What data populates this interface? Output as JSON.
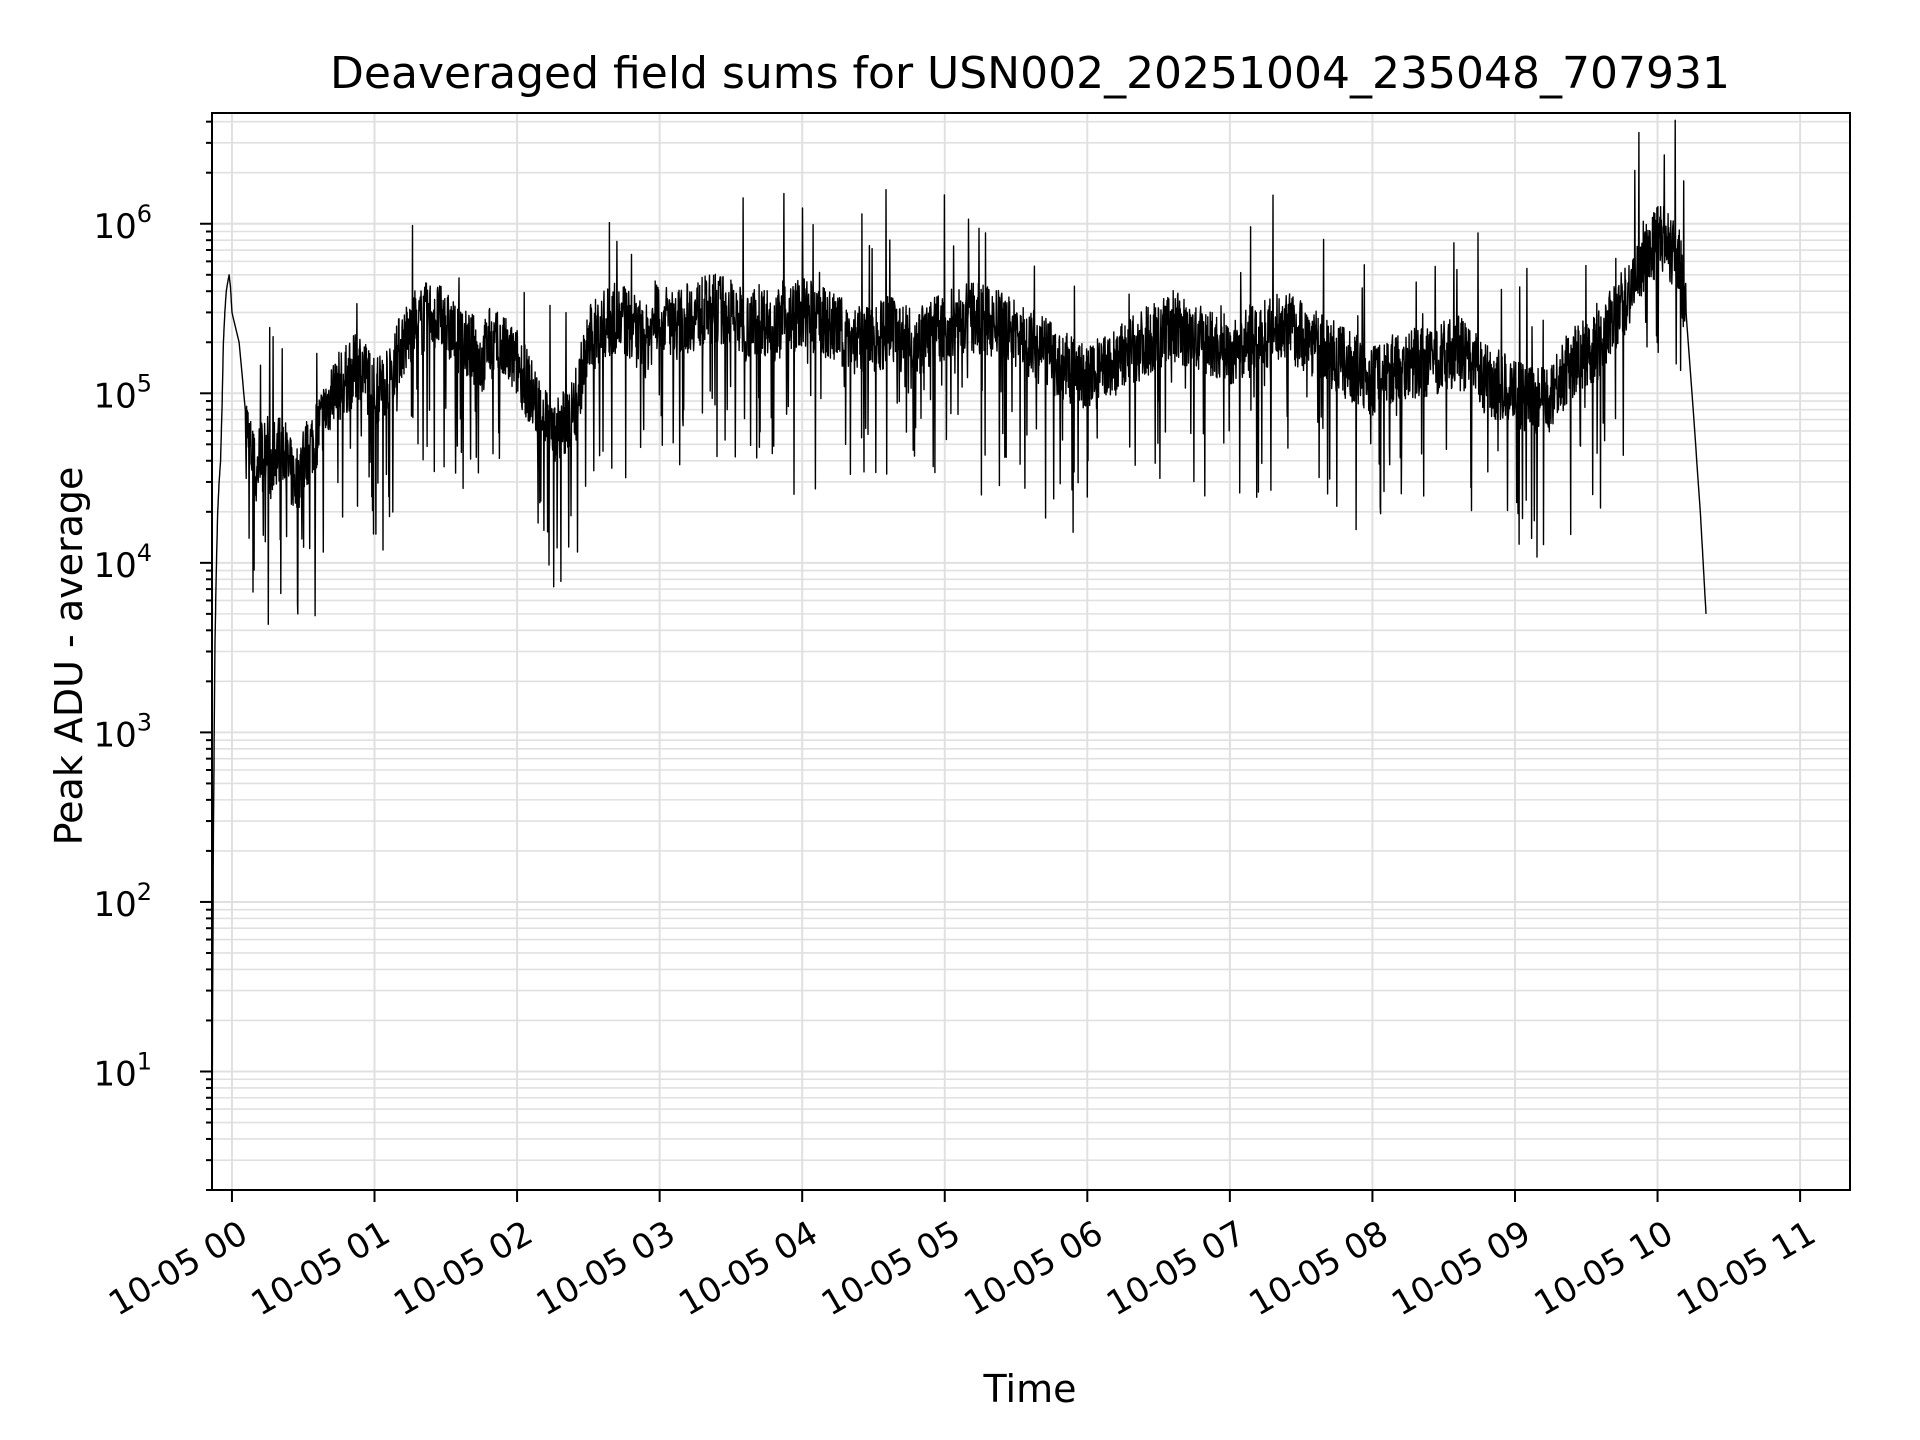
{
  "chart_data": {
    "type": "line",
    "title": "Deaveraged field sums for USN002_20251004_235048_707931",
    "xlabel": "Time",
    "ylabel": "Peak ADU - average",
    "yscale": "log",
    "ylim": [
      2,
      4500000
    ],
    "xlim_hours": [
      -0.14,
      11.35
    ],
    "grid": true,
    "line_color": "#000000",
    "grid_color": "#e0e0e0",
    "x_ticks": [
      {
        "hour": 0,
        "label": "10-05 00"
      },
      {
        "hour": 1,
        "label": "10-05 01"
      },
      {
        "hour": 2,
        "label": "10-05 02"
      },
      {
        "hour": 3,
        "label": "10-05 03"
      },
      {
        "hour": 4,
        "label": "10-05 04"
      },
      {
        "hour": 5,
        "label": "10-05 05"
      },
      {
        "hour": 6,
        "label": "10-05 06"
      },
      {
        "hour": 7,
        "label": "10-05 07"
      },
      {
        "hour": 8,
        "label": "10-05 08"
      },
      {
        "hour": 9,
        "label": "10-05 09"
      },
      {
        "hour": 10,
        "label": "10-05 10"
      },
      {
        "hour": 11,
        "label": "10-05 11"
      }
    ],
    "y_ticks": [
      {
        "exp": 1,
        "base": "10",
        "sup": "1"
      },
      {
        "exp": 2,
        "base": "10",
        "sup": "2"
      },
      {
        "exp": 3,
        "base": "10",
        "sup": "3"
      },
      {
        "exp": 4,
        "base": "10",
        "sup": "4"
      },
      {
        "exp": 5,
        "base": "10",
        "sup": "5"
      },
      {
        "exp": 6,
        "base": "10",
        "sup": "6"
      }
    ],
    "series": [
      {
        "x_hours": [
          -0.14,
          -0.13,
          -0.12,
          -0.11,
          -0.1,
          -0.09,
          -0.08,
          -0.07,
          -0.06,
          -0.05,
          -0.04,
          -0.03,
          -0.02,
          -0.01,
          0.0,
          0.05,
          0.1,
          0.12,
          0.15,
          0.17,
          0.2,
          0.22,
          0.25,
          0.27,
          0.3,
          0.35,
          0.4,
          0.45,
          0.5,
          0.6,
          0.7,
          0.8,
          0.9,
          1.0,
          1.1,
          1.2,
          1.3,
          1.4,
          1.5,
          1.6,
          1.7,
          1.75,
          1.8,
          1.9,
          2.0,
          2.1,
          2.2,
          2.3,
          2.4,
          2.5,
          2.6,
          2.7,
          2.8,
          2.9,
          3.0,
          3.1,
          3.2,
          3.3,
          3.4,
          3.5,
          3.6,
          3.7,
          3.8,
          3.9,
          4.0,
          4.2,
          4.4,
          4.6,
          4.8,
          5.0,
          5.2,
          5.4,
          5.6,
          5.8,
          6.0,
          6.2,
          6.4,
          6.6,
          6.8,
          7.0,
          7.2,
          7.4,
          7.6,
          7.8,
          8.0,
          8.2,
          8.4,
          8.6,
          8.8,
          9.0,
          9.2,
          9.4,
          9.6,
          9.8,
          9.9,
          10.0,
          10.05,
          10.1,
          10.15,
          10.2,
          10.25,
          10.3,
          10.32,
          10.34
        ],
        "y": [
          4,
          250,
          3000,
          9000,
          20000,
          30000,
          40000,
          80000,
          200000,
          300000,
          400000,
          450000,
          500000,
          420000,
          300000,
          200000,
          70000,
          50000,
          40000,
          30000,
          50000,
          40000,
          60000,
          30000,
          45000,
          50000,
          35000,
          30000,
          40000,
          60000,
          100000,
          120000,
          150000,
          100000,
          130000,
          200000,
          250000,
          300000,
          250000,
          200000,
          180000,
          150000,
          200000,
          180000,
          150000,
          100000,
          70000,
          60000,
          80000,
          200000,
          250000,
          280000,
          250000,
          200000,
          300000,
          250000,
          280000,
          300000,
          320000,
          300000,
          250000,
          280000,
          250000,
          270000,
          300000,
          250000,
          200000,
          230000,
          200000,
          250000,
          280000,
          250000,
          200000,
          150000,
          120000,
          150000,
          200000,
          250000,
          200000,
          180000,
          220000,
          250000,
          200000,
          150000,
          120000,
          150000,
          150000,
          180000,
          120000,
          100000,
          90000,
          150000,
          200000,
          400000,
          600000,
          800000,
          850000,
          700000,
          600000,
          300000,
          80000,
          20000,
          10000,
          5000
        ]
      }
    ]
  }
}
